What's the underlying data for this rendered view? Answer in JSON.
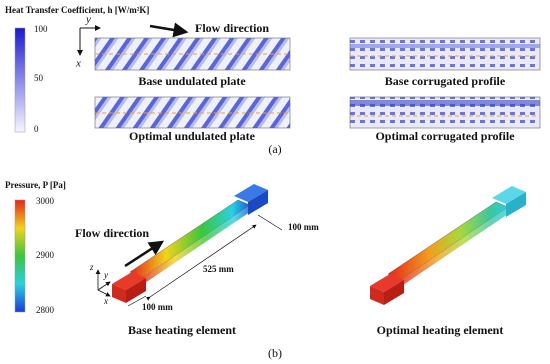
{
  "panel_a": {
    "colorbar": {
      "title": "Heat Transfer Coefficient, h [W/m²K]",
      "ticks": [
        100,
        50,
        0
      ]
    },
    "axes": {
      "y": "y",
      "x": "x"
    },
    "flow_label": "Flow direction",
    "images": [
      "Base undulated plate",
      "Optimal undulated plate",
      "Base corrugated profile",
      "Optimal corrugated profile"
    ],
    "label": "(a)"
  },
  "panel_b": {
    "colorbar": {
      "title": "Pressure, P [Pa]",
      "ticks": [
        3000,
        2900,
        2800
      ]
    },
    "flow_label": "Flow direction",
    "dimensions": [
      "100 mm",
      "525 mm",
      "100 mm"
    ],
    "axes": {
      "z": "z",
      "y": "y",
      "x": "x"
    },
    "captions": [
      "Base heating element",
      "Optimal heating element"
    ],
    "label": "(b)"
  }
}
